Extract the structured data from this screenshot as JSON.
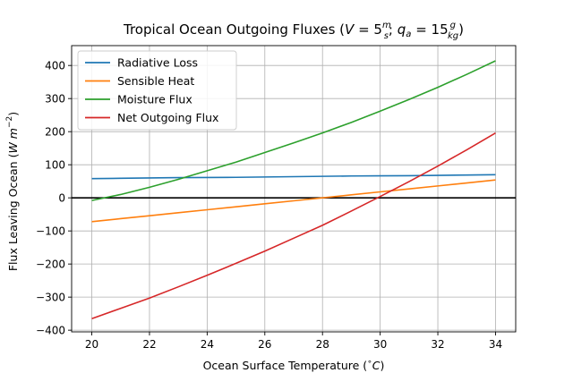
{
  "chart_data": {
    "type": "line",
    "title": {
      "prefix": "Tropical Ocean Outgoing Fluxes (",
      "V": "V",
      "eq1": " = 5",
      "frac1_num": "m",
      "frac1_den": "s",
      "sep": "; ",
      "q": "q",
      "q_sub": "a",
      "eq2": " = 15",
      "frac2_num": "g",
      "frac2_den": "kg",
      "suffix": ")"
    },
    "xlabel": {
      "text": "Ocean Surface Temperature (",
      "degree": "∘",
      "unit": "C",
      "close": ")"
    },
    "ylabel": {
      "text": "Flux Leaving Ocean (",
      "unit": "W m",
      "exp": "−2",
      "close": ")"
    },
    "xlim": [
      19.3,
      34.7
    ],
    "ylim": [
      -405,
      460
    ],
    "xticks": [
      20,
      22,
      24,
      26,
      28,
      30,
      32,
      34
    ],
    "xtick_labels": [
      "20",
      "22",
      "24",
      "26",
      "28",
      "30",
      "32",
      "34"
    ],
    "yticks": [
      -400,
      -300,
      -200,
      -100,
      0,
      100,
      200,
      300,
      400
    ],
    "ytick_labels": [
      "−400",
      "−300",
      "−200",
      "−100",
      "0",
      "100",
      "200",
      "300",
      "400"
    ],
    "grid": true,
    "zero_line": true,
    "legend_position": "top-left",
    "x": [
      20,
      21,
      22,
      23,
      24,
      25,
      26,
      27,
      28,
      29,
      30,
      31,
      32,
      33,
      34
    ],
    "series": [
      {
        "name": "Radiative Loss",
        "color": "#1f77b4",
        "values": [
          58,
          59,
          60,
          61,
          61.5,
          62,
          63,
          64,
          65,
          66,
          66.5,
          67,
          68,
          69,
          70
        ]
      },
      {
        "name": "Sensible Heat",
        "color": "#ff7f0e",
        "values": [
          -72,
          -63,
          -54,
          -45,
          -36,
          -27,
          -18,
          -9,
          0,
          9,
          18,
          27,
          36,
          45,
          54
        ]
      },
      {
        "name": "Moisture Flux",
        "color": "#2ca02c",
        "values": [
          -8,
          10,
          32,
          56,
          82,
          108,
          137,
          166,
          196,
          228,
          262,
          297,
          334,
          373,
          414
        ]
      },
      {
        "name": "Net Outgoing Flux",
        "color": "#d62728",
        "values": [
          -365,
          -334,
          -303,
          -269,
          -234,
          -198,
          -161,
          -122,
          -83,
          -40,
          4,
          49,
          96,
          145,
          196
        ]
      }
    ]
  }
}
